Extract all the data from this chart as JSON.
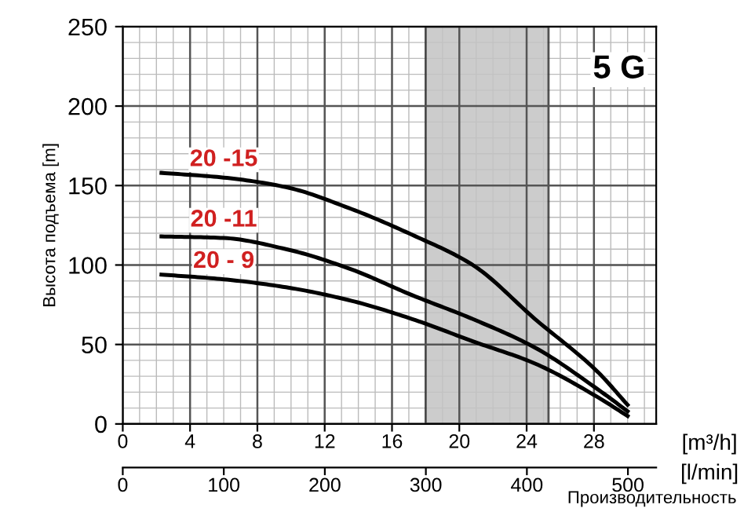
{
  "chart_data": {
    "type": "line",
    "ylabel": "Высота подъема [m]",
    "xlabel": "[m³/h]",
    "x2label": "[l/min]",
    "annotations": [
      "5 G",
      "Производительность"
    ],
    "x": [
      2.3,
      6.0,
      9.7,
      13.4,
      17.2,
      20.8,
      24.5,
      28.2,
      30.0
    ],
    "series": [
      {
        "name": "20 -15",
        "color": "#000000",
        "values": [
          158,
          155,
          149,
          136,
          119,
          100,
          66,
          33,
          12
        ]
      },
      {
        "name": "20 -11",
        "color": "#000000",
        "values": [
          118,
          117,
          110,
          98,
          81,
          66,
          48,
          22,
          8
        ]
      },
      {
        "name": "20 - 9",
        "color": "#000000",
        "values": [
          94,
          91,
          86,
          78,
          66,
          52,
          38,
          17,
          5
        ]
      }
    ],
    "bands": [
      {
        "axis": "x",
        "from": 18.0,
        "to": 25.3,
        "color": "#c4c4c4"
      }
    ],
    "xlim": [
      0,
      31.7
    ],
    "xticks": [
      0,
      4,
      8,
      12,
      16,
      20,
      24,
      28
    ],
    "x2lim": [
      0,
      528
    ],
    "x2ticks": [
      0,
      100,
      200,
      300,
      400,
      500
    ],
    "ylim": [
      0,
      250
    ],
    "yticks": [
      0,
      50,
      100,
      150,
      200,
      250
    ],
    "grid": true,
    "legend": false,
    "marker": "none",
    "line_style": "solid"
  }
}
